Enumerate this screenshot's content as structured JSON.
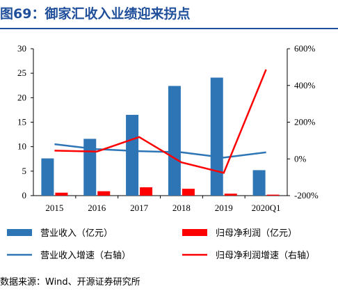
{
  "figure": {
    "title": "图69：御家汇收入业绩迎来拐点",
    "source": "数据来源：Wind、开源证券研究所"
  },
  "colors": {
    "title": "#1f4e9a",
    "revenue_bar": "#2e75b6",
    "profit_bar": "#ff0000",
    "revenue_growth_line": "#2e75b6",
    "profit_growth_line": "#ff0000"
  },
  "chart_data": {
    "type": "bar",
    "categories": [
      "2015",
      "2016",
      "2017",
      "2018",
      "2019",
      "2020Q1"
    ],
    "series": [
      {
        "name": "营业收入（亿元）",
        "kind": "bar",
        "axis": "left",
        "values": [
          7.6,
          11.6,
          16.5,
          22.4,
          24.1,
          5.2
        ]
      },
      {
        "name": "归母净利润（亿元）",
        "kind": "bar",
        "axis": "left",
        "values": [
          0.6,
          0.9,
          1.7,
          1.4,
          0.4,
          0.2
        ]
      },
      {
        "name": "营业收入增速（右轴）",
        "kind": "line",
        "axis": "right",
        "values": [
          0.8,
          0.53,
          0.42,
          0.36,
          0.07,
          0.36
        ]
      },
      {
        "name": "归母净利润增速（右轴）",
        "kind": "line",
        "axis": "right",
        "values": [
          0.45,
          0.4,
          1.19,
          -0.19,
          -0.76,
          4.87
        ]
      }
    ],
    "y_left": {
      "lim": [
        0,
        30
      ],
      "ticks": [
        "0",
        "5",
        "10",
        "15",
        "20",
        "25",
        "30"
      ]
    },
    "y_right": {
      "lim": [
        -2,
        6
      ],
      "ticks": [
        "-200%",
        "0%",
        "200%",
        "400%",
        "600%"
      ]
    },
    "grid": false,
    "legend_position": "bottom"
  }
}
